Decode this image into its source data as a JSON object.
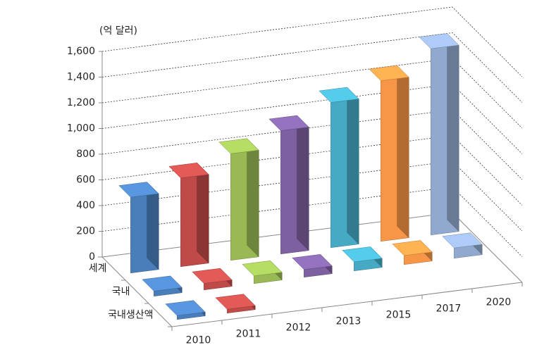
{
  "chart_data": {
    "type": "bar3d",
    "unit_label": "(억 달러)",
    "categories": [
      "2010",
      "2011",
      "2012",
      "2013",
      "2015",
      "2017",
      "2020"
    ],
    "colors": [
      "#4a7ebb",
      "#be4b48",
      "#98b954",
      "#7d60a0",
      "#46aac5",
      "#f79646",
      "#92a9cf"
    ],
    "series": [
      {
        "name": "세계",
        "values": [
          590,
          690,
          830,
          960,
          1130,
          1250,
          1450
        ]
      },
      {
        "name": "국내",
        "values": [
          40,
          50,
          60,
          60,
          70,
          70,
          80
        ]
      },
      {
        "name": "국내생산액",
        "values": [
          30,
          30,
          null,
          null,
          null,
          null,
          null
        ]
      }
    ],
    "ylim": [
      0,
      1600
    ],
    "yticks": [
      0,
      200,
      400,
      600,
      800,
      {
        "value": 1000,
        "label": "1,000"
      },
      {
        "value": 1200,
        "label": "1,200"
      },
      {
        "value": 1400,
        "label": "1,400"
      },
      {
        "value": 1600,
        "label": "1,600"
      }
    ],
    "grid": true
  }
}
